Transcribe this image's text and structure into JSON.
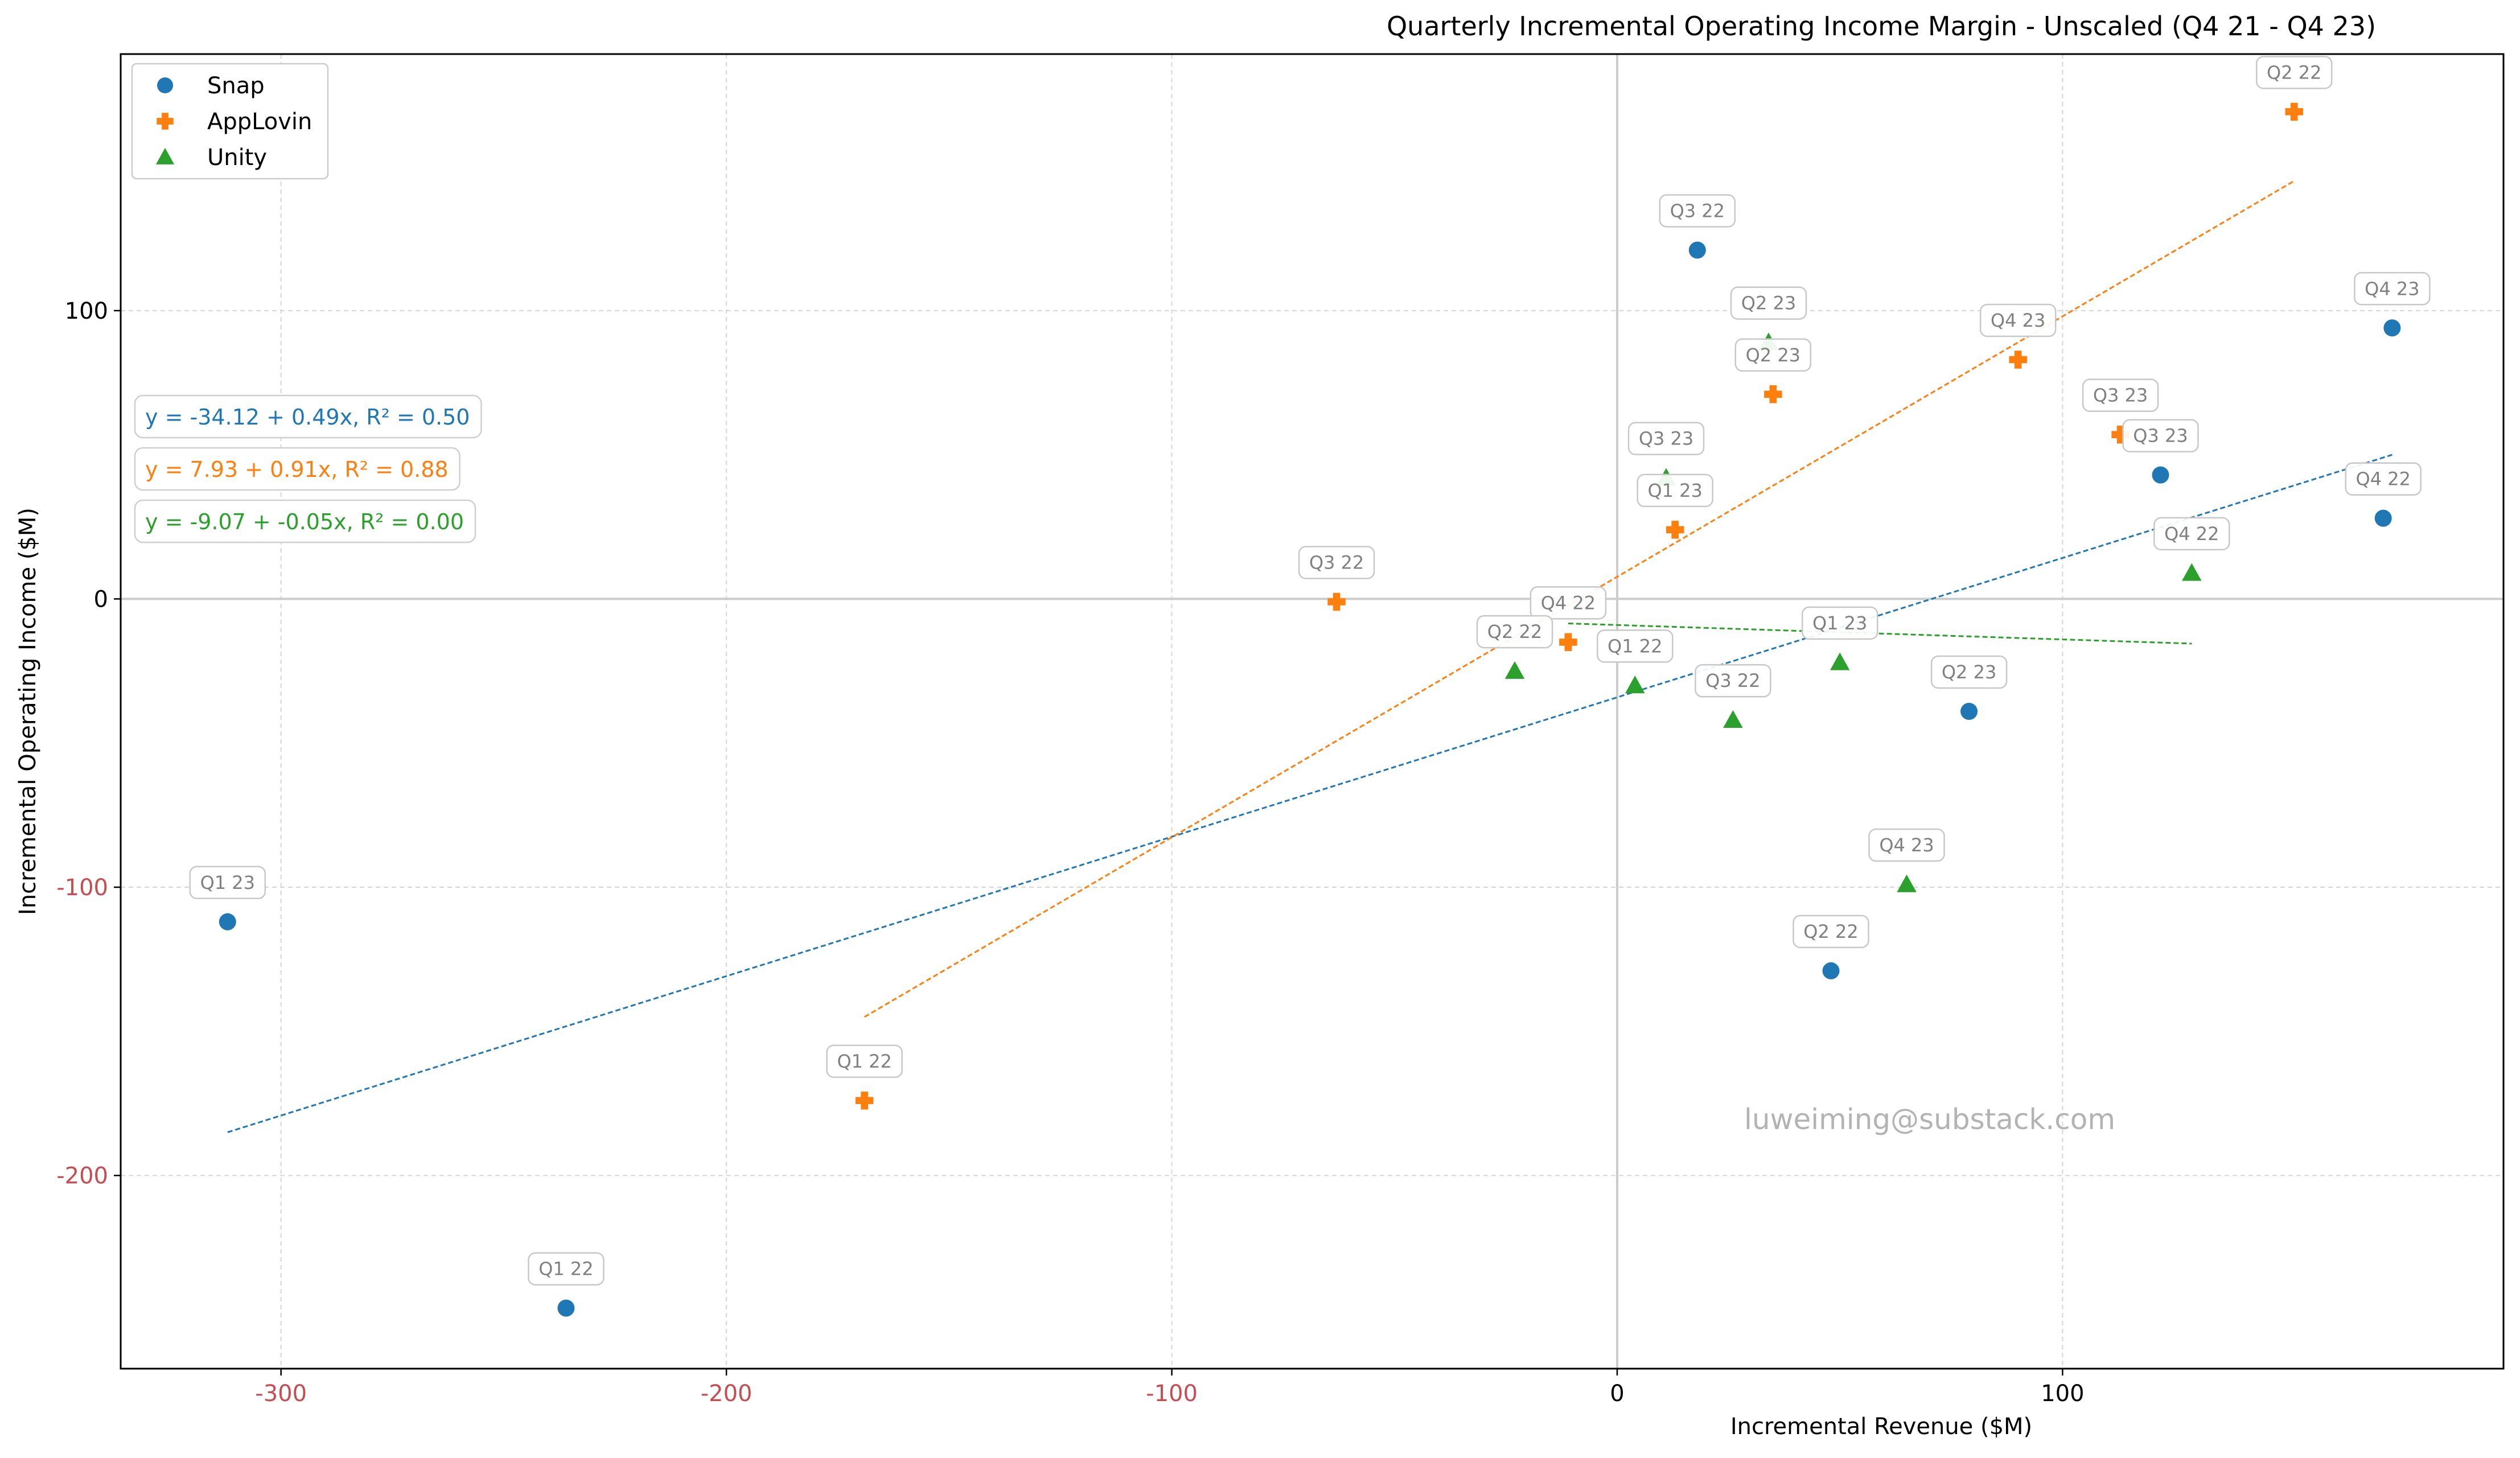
{
  "chart_data": {
    "type": "scatter",
    "title": "Quarterly Incremental Operating Income Margin - Unscaled (Q4 21 - Q4 23)",
    "xlabel": "Incremental Revenue ($M)",
    "ylabel": "Incremental Operating Income ($M)",
    "xlim": [
      -336,
      199
    ],
    "ylim": [
      -267,
      189
    ],
    "xticks": [
      -300,
      -200,
      -100,
      0,
      100
    ],
    "yticks": [
      -200,
      -100,
      0,
      100
    ],
    "xtick_labels": [
      "-300",
      "-200",
      "-100",
      "0",
      "100"
    ],
    "ytick_labels": [
      "-200",
      "-100",
      "0",
      "100"
    ],
    "negative_tick_color": "#c44e52",
    "grid": true,
    "legend_position": "top-left",
    "watermark": "luweiming@substack.com",
    "series": [
      {
        "name": "Snap",
        "marker": "circle",
        "color": "#1f77b4",
        "equation": "y = -34.12 + 0.49x, R² = 0.50",
        "trend": [
          [
            -312,
            -185
          ],
          [
            174,
            50
          ]
        ],
        "points": [
          {
            "label": "Q1 22",
            "x": -236,
            "y": -246
          },
          {
            "label": "Q2 22",
            "x": 48,
            "y": -129
          },
          {
            "label": "Q3 22",
            "x": 18,
            "y": 121
          },
          {
            "label": "Q4 22",
            "x": 172,
            "y": 28
          },
          {
            "label": "Q1 23",
            "x": -312,
            "y": -112
          },
          {
            "label": "Q2 23",
            "x": 79,
            "y": -39
          },
          {
            "label": "Q3 23",
            "x": 122,
            "y": 43
          },
          {
            "label": "Q4 23",
            "x": 174,
            "y": 94
          }
        ]
      },
      {
        "name": "AppLovin",
        "marker": "plus",
        "color": "#ff7f0e",
        "equation": "y = 7.93 + 0.91x, R² = 0.88",
        "trend": [
          [
            -169,
            -145
          ],
          [
            152,
            145
          ]
        ],
        "points": [
          {
            "label": "Q1 22",
            "x": -169,
            "y": -174
          },
          {
            "label": "Q2 22",
            "x": 152,
            "y": 169
          },
          {
            "label": "Q3 22",
            "x": -63,
            "y": -1
          },
          {
            "label": "Q4 22",
            "x": -11,
            "y": -15
          },
          {
            "label": "Q1 23",
            "x": 13,
            "y": 24
          },
          {
            "label": "Q2 23",
            "x": 35,
            "y": 71
          },
          {
            "label": "Q3 23",
            "x": 113,
            "y": 57
          },
          {
            "label": "Q4 23",
            "x": 90,
            "y": 83
          }
        ]
      },
      {
        "name": "Unity",
        "marker": "triangle",
        "color": "#2ca02c",
        "equation": "y = -9.07 + -0.05x, R² = 0.00",
        "trend": [
          [
            -11,
            -8.5
          ],
          [
            129,
            -15.5
          ]
        ],
        "points": [
          {
            "label": "Q1 22",
            "x": 4,
            "y": -30
          },
          {
            "label": "Q2 22",
            "x": -23,
            "y": -25
          },
          {
            "label": "Q3 22",
            "x": 26,
            "y": -42
          },
          {
            "label": "Q4 22",
            "x": 129,
            "y": 9
          },
          {
            "label": "Q1 23",
            "x": 50,
            "y": -22
          },
          {
            "label": "Q2 23",
            "x": 34,
            "y": 89
          },
          {
            "label": "Q3 23",
            "x": 11,
            "y": 42
          },
          {
            "label": "Q4 23",
            "x": 65,
            "y": -99
          }
        ]
      }
    ]
  }
}
